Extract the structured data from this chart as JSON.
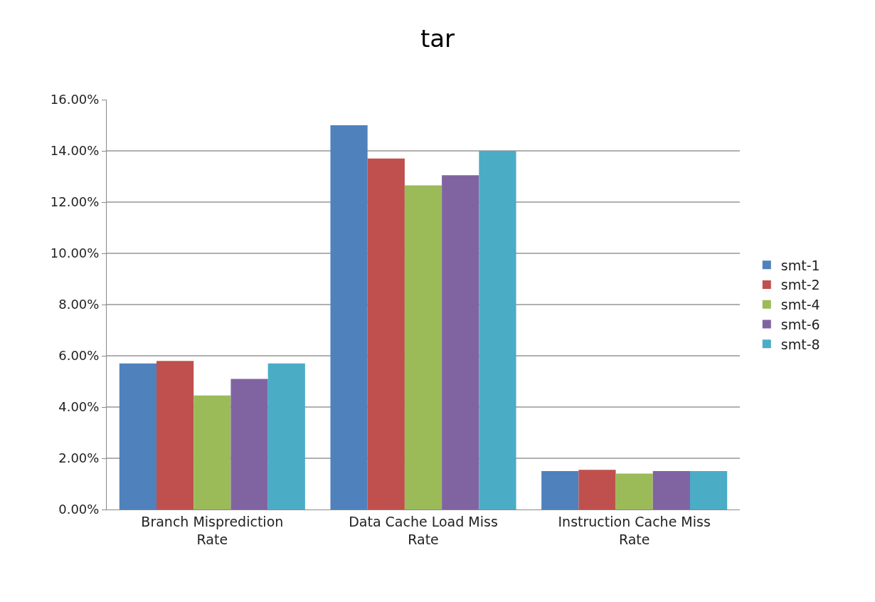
{
  "chart_data": {
    "type": "bar",
    "title": "tar",
    "categories": [
      "Branch Misprediction Rate",
      "Data Cache Load Miss Rate",
      "Instruction Cache Miss Rate"
    ],
    "series": [
      {
        "name": "smt-1",
        "color": "#4f81bd",
        "values": [
          5.7,
          15.0,
          1.5
        ]
      },
      {
        "name": "smt-2",
        "color": "#c0504d",
        "values": [
          5.8,
          13.7,
          1.55
        ]
      },
      {
        "name": "smt-4",
        "color": "#9bbb59",
        "values": [
          4.45,
          12.65,
          1.4
        ]
      },
      {
        "name": "smt-6",
        "color": "#8064a2",
        "values": [
          5.1,
          13.05,
          1.5
        ]
      },
      {
        "name": "smt-8",
        "color": "#4bacc6",
        "values": [
          5.7,
          14.0,
          1.5
        ]
      }
    ],
    "ylim": [
      0,
      16
    ],
    "yticks": [
      {
        "value": 0,
        "label": "0.00%"
      },
      {
        "value": 2,
        "label": "2.00%"
      },
      {
        "value": 4,
        "label": "4.00%"
      },
      {
        "value": 6,
        "label": "6.00%"
      },
      {
        "value": 8,
        "label": "8.00%"
      },
      {
        "value": 10,
        "label": "10.00%"
      },
      {
        "value": 12,
        "label": "12.00%"
      },
      {
        "value": 14,
        "label": "14.00%"
      },
      {
        "value": 16,
        "label": "16.00%"
      }
    ],
    "grid": "y",
    "legend": "right"
  }
}
